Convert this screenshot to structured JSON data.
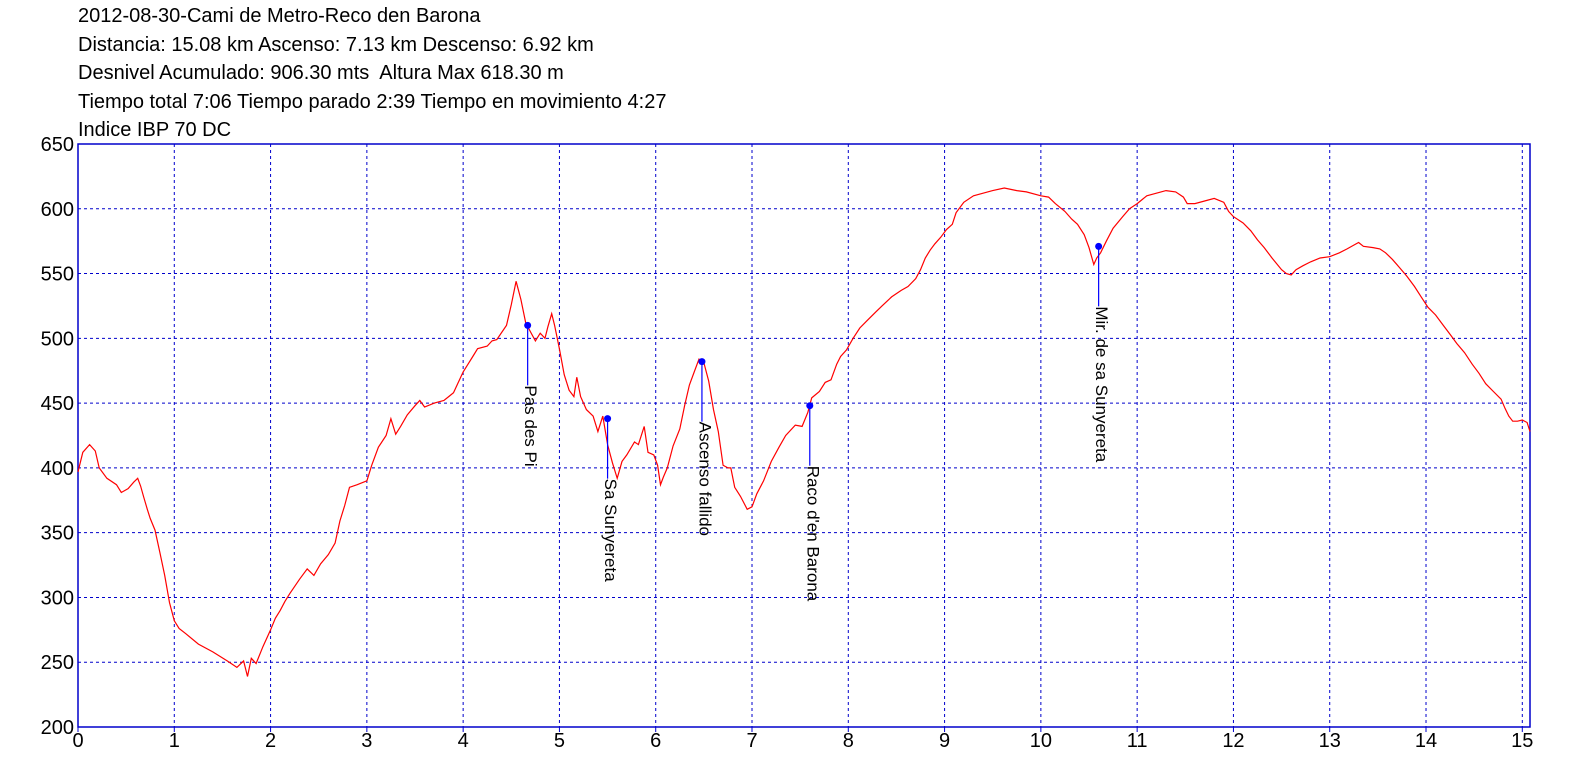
{
  "header": {
    "lines": [
      "2012-08-30-Cami de Metro-Reco den Barona",
      "Distancia: 15.08 km Ascenso: 7.13 km Descenso: 6.92 km",
      "Desnivel Acumulado: 906.30 mts  Altura Max 618.30 m",
      "Tiempo total 7:06 Tiempo parado 2:39 Tiempo en movimiento 4:27",
      "Indice IBP 70 DC"
    ]
  },
  "colors": {
    "frame": "#0000cc",
    "grid": "#0000cc",
    "profile": "#ff0000",
    "waypoint": "#0000ff"
  },
  "chart_data": {
    "type": "line",
    "title": "2012-08-30-Cami de Metro-Reco den Barona",
    "xlabel": "",
    "ylabel": "",
    "xlim": [
      0,
      15.08
    ],
    "ylim": [
      200,
      650
    ],
    "grid": true,
    "x_ticks": [
      0,
      1,
      2,
      3,
      4,
      5,
      6,
      7,
      8,
      9,
      10,
      11,
      12,
      13,
      14,
      15
    ],
    "y_ticks": [
      200,
      250,
      300,
      350,
      400,
      450,
      500,
      550,
      600,
      650
    ],
    "series": [
      {
        "color": "#ff0000",
        "points": [
          [
            0,
            397
          ],
          [
            0.05,
            412
          ],
          [
            0.12,
            418
          ],
          [
            0.18,
            413
          ],
          [
            0.22,
            400
          ],
          [
            0.3,
            392
          ],
          [
            0.4,
            387
          ],
          [
            0.45,
            381
          ],
          [
            0.52,
            384
          ],
          [
            0.58,
            389
          ],
          [
            0.62,
            392
          ],
          [
            0.65,
            386
          ],
          [
            0.68,
            378
          ],
          [
            0.72,
            368
          ],
          [
            0.75,
            361
          ],
          [
            0.8,
            352
          ],
          [
            0.85,
            335
          ],
          [
            0.9,
            317
          ],
          [
            0.95,
            296
          ],
          [
            1.0,
            282
          ],
          [
            1.05,
            276
          ],
          [
            1.12,
            272
          ],
          [
            1.25,
            264
          ],
          [
            1.4,
            258
          ],
          [
            1.55,
            251
          ],
          [
            1.65,
            246
          ],
          [
            1.72,
            251
          ],
          [
            1.76,
            239
          ],
          [
            1.8,
            253
          ],
          [
            1.85,
            249
          ],
          [
            1.92,
            262
          ],
          [
            2.0,
            275
          ],
          [
            2.05,
            284
          ],
          [
            2.1,
            290
          ],
          [
            2.15,
            297
          ],
          [
            2.2,
            303
          ],
          [
            2.3,
            314
          ],
          [
            2.38,
            322
          ],
          [
            2.45,
            317
          ],
          [
            2.52,
            326
          ],
          [
            2.6,
            333
          ],
          [
            2.67,
            342
          ],
          [
            2.72,
            359
          ],
          [
            2.77,
            371
          ],
          [
            2.82,
            385
          ],
          [
            2.9,
            387
          ],
          [
            3.0,
            390
          ],
          [
            3.05,
            402
          ],
          [
            3.12,
            416
          ],
          [
            3.2,
            425
          ],
          [
            3.25,
            438
          ],
          [
            3.3,
            426
          ],
          [
            3.35,
            432
          ],
          [
            3.42,
            441
          ],
          [
            3.5,
            448
          ],
          [
            3.55,
            452
          ],
          [
            3.6,
            447
          ],
          [
            3.7,
            450
          ],
          [
            3.8,
            452
          ],
          [
            3.85,
            455
          ],
          [
            3.9,
            458
          ],
          [
            3.95,
            466
          ],
          [
            4.0,
            474
          ],
          [
            4.05,
            480
          ],
          [
            4.1,
            486
          ],
          [
            4.15,
            492
          ],
          [
            4.25,
            494
          ],
          [
            4.3,
            498
          ],
          [
            4.35,
            499
          ],
          [
            4.45,
            510
          ],
          [
            4.5,
            526
          ],
          [
            4.55,
            544
          ],
          [
            4.6,
            530
          ],
          [
            4.65,
            512
          ],
          [
            4.7,
            505
          ],
          [
            4.75,
            498
          ],
          [
            4.8,
            504
          ],
          [
            4.85,
            500
          ],
          [
            4.88,
            509
          ],
          [
            4.92,
            519
          ],
          [
            4.95,
            510
          ],
          [
            5.0,
            492
          ],
          [
            5.05,
            472
          ],
          [
            5.1,
            460
          ],
          [
            5.15,
            455
          ],
          [
            5.18,
            470
          ],
          [
            5.22,
            455
          ],
          [
            5.28,
            445
          ],
          [
            5.35,
            440
          ],
          [
            5.4,
            428
          ],
          [
            5.45,
            440
          ],
          [
            5.5,
            418
          ],
          [
            5.55,
            404
          ],
          [
            5.6,
            392
          ],
          [
            5.65,
            405
          ],
          [
            5.7,
            410
          ],
          [
            5.78,
            420
          ],
          [
            5.82,
            418
          ],
          [
            5.88,
            432
          ],
          [
            5.92,
            412
          ],
          [
            5.98,
            410
          ],
          [
            6.02,
            402
          ],
          [
            6.05,
            387
          ],
          [
            6.08,
            393
          ],
          [
            6.12,
            400
          ],
          [
            6.18,
            417
          ],
          [
            6.25,
            430
          ],
          [
            6.3,
            448
          ],
          [
            6.35,
            464
          ],
          [
            6.4,
            474
          ],
          [
            6.45,
            484
          ],
          [
            6.5,
            481
          ],
          [
            6.55,
            467
          ],
          [
            6.6,
            445
          ],
          [
            6.65,
            428
          ],
          [
            6.7,
            402
          ],
          [
            6.75,
            400
          ],
          [
            6.78,
            400
          ],
          [
            6.82,
            385
          ],
          [
            6.88,
            378
          ],
          [
            6.95,
            368
          ],
          [
            7.0,
            370
          ],
          [
            7.05,
            380
          ],
          [
            7.12,
            390
          ],
          [
            7.2,
            405
          ],
          [
            7.28,
            416
          ],
          [
            7.35,
            425
          ],
          [
            7.45,
            433
          ],
          [
            7.52,
            432
          ],
          [
            7.58,
            443
          ],
          [
            7.62,
            454
          ],
          [
            7.7,
            459
          ],
          [
            7.76,
            466
          ],
          [
            7.82,
            468
          ],
          [
            7.88,
            480
          ],
          [
            7.92,
            486
          ],
          [
            7.98,
            491
          ],
          [
            8.05,
            500
          ],
          [
            8.12,
            508
          ],
          [
            8.2,
            514
          ],
          [
            8.28,
            520
          ],
          [
            8.35,
            525
          ],
          [
            8.45,
            532
          ],
          [
            8.55,
            537
          ],
          [
            8.62,
            540
          ],
          [
            8.7,
            546
          ],
          [
            8.75,
            553
          ],
          [
            8.8,
            562
          ],
          [
            8.85,
            568
          ],
          [
            8.9,
            573
          ],
          [
            8.96,
            578
          ],
          [
            9.02,
            584
          ],
          [
            9.08,
            588
          ],
          [
            9.12,
            597
          ],
          [
            9.2,
            605
          ],
          [
            9.3,
            610
          ],
          [
            9.4,
            612
          ],
          [
            9.5,
            614
          ],
          [
            9.62,
            616
          ],
          [
            9.75,
            614
          ],
          [
            9.85,
            613
          ],
          [
            10.0,
            610
          ],
          [
            10.08,
            609
          ],
          [
            10.15,
            604
          ],
          [
            10.25,
            598
          ],
          [
            10.32,
            592
          ],
          [
            10.38,
            588
          ],
          [
            10.45,
            580
          ],
          [
            10.5,
            570
          ],
          [
            10.55,
            557
          ],
          [
            10.58,
            562
          ],
          [
            10.62,
            566
          ],
          [
            10.68,
            575
          ],
          [
            10.75,
            585
          ],
          [
            10.85,
            594
          ],
          [
            10.92,
            600
          ],
          [
            11.0,
            604
          ],
          [
            11.1,
            610
          ],
          [
            11.2,
            612
          ],
          [
            11.3,
            614
          ],
          [
            11.4,
            613
          ],
          [
            11.48,
            609
          ],
          [
            11.52,
            604
          ],
          [
            11.6,
            604
          ],
          [
            11.7,
            606
          ],
          [
            11.8,
            608
          ],
          [
            11.9,
            605
          ],
          [
            11.95,
            598
          ],
          [
            12.0,
            594
          ],
          [
            12.1,
            589
          ],
          [
            12.18,
            583
          ],
          [
            12.25,
            576
          ],
          [
            12.32,
            570
          ],
          [
            12.4,
            562
          ],
          [
            12.5,
            553
          ],
          [
            12.55,
            550
          ],
          [
            12.6,
            549
          ],
          [
            12.65,
            553
          ],
          [
            12.72,
            556
          ],
          [
            12.8,
            559
          ],
          [
            12.9,
            562
          ],
          [
            13.0,
            563
          ],
          [
            13.1,
            566
          ],
          [
            13.18,
            569
          ],
          [
            13.25,
            572
          ],
          [
            13.3,
            574
          ],
          [
            13.35,
            571
          ],
          [
            13.45,
            570
          ],
          [
            13.52,
            569
          ],
          [
            13.58,
            566
          ],
          [
            13.65,
            561
          ],
          [
            13.72,
            555
          ],
          [
            13.8,
            548
          ],
          [
            13.88,
            540
          ],
          [
            13.95,
            532
          ],
          [
            14.02,
            524
          ],
          [
            14.1,
            518
          ],
          [
            14.18,
            510
          ],
          [
            14.25,
            503
          ],
          [
            14.32,
            496
          ],
          [
            14.4,
            489
          ],
          [
            14.48,
            480
          ],
          [
            14.55,
            473
          ],
          [
            14.62,
            465
          ],
          [
            14.7,
            459
          ],
          [
            14.78,
            453
          ],
          [
            14.82,
            446
          ],
          [
            14.86,
            440
          ],
          [
            14.9,
            436
          ],
          [
            14.95,
            436
          ],
          [
            15.0,
            437
          ],
          [
            15.05,
            435
          ],
          [
            15.08,
            428
          ]
        ]
      }
    ],
    "waypoints": [
      {
        "label": "Pas  des Pi",
        "x": 4.67,
        "y": 510
      },
      {
        "label": "Sa Sunyereta",
        "x": 5.5,
        "y": 438
      },
      {
        "label": "Ascenso fallido",
        "x": 6.48,
        "y": 482
      },
      {
        "label": "Raco d'en Barona",
        "x": 7.6,
        "y": 448
      },
      {
        "label": "Mir. de sa Sunyereta",
        "x": 10.6,
        "y": 571
      }
    ]
  }
}
